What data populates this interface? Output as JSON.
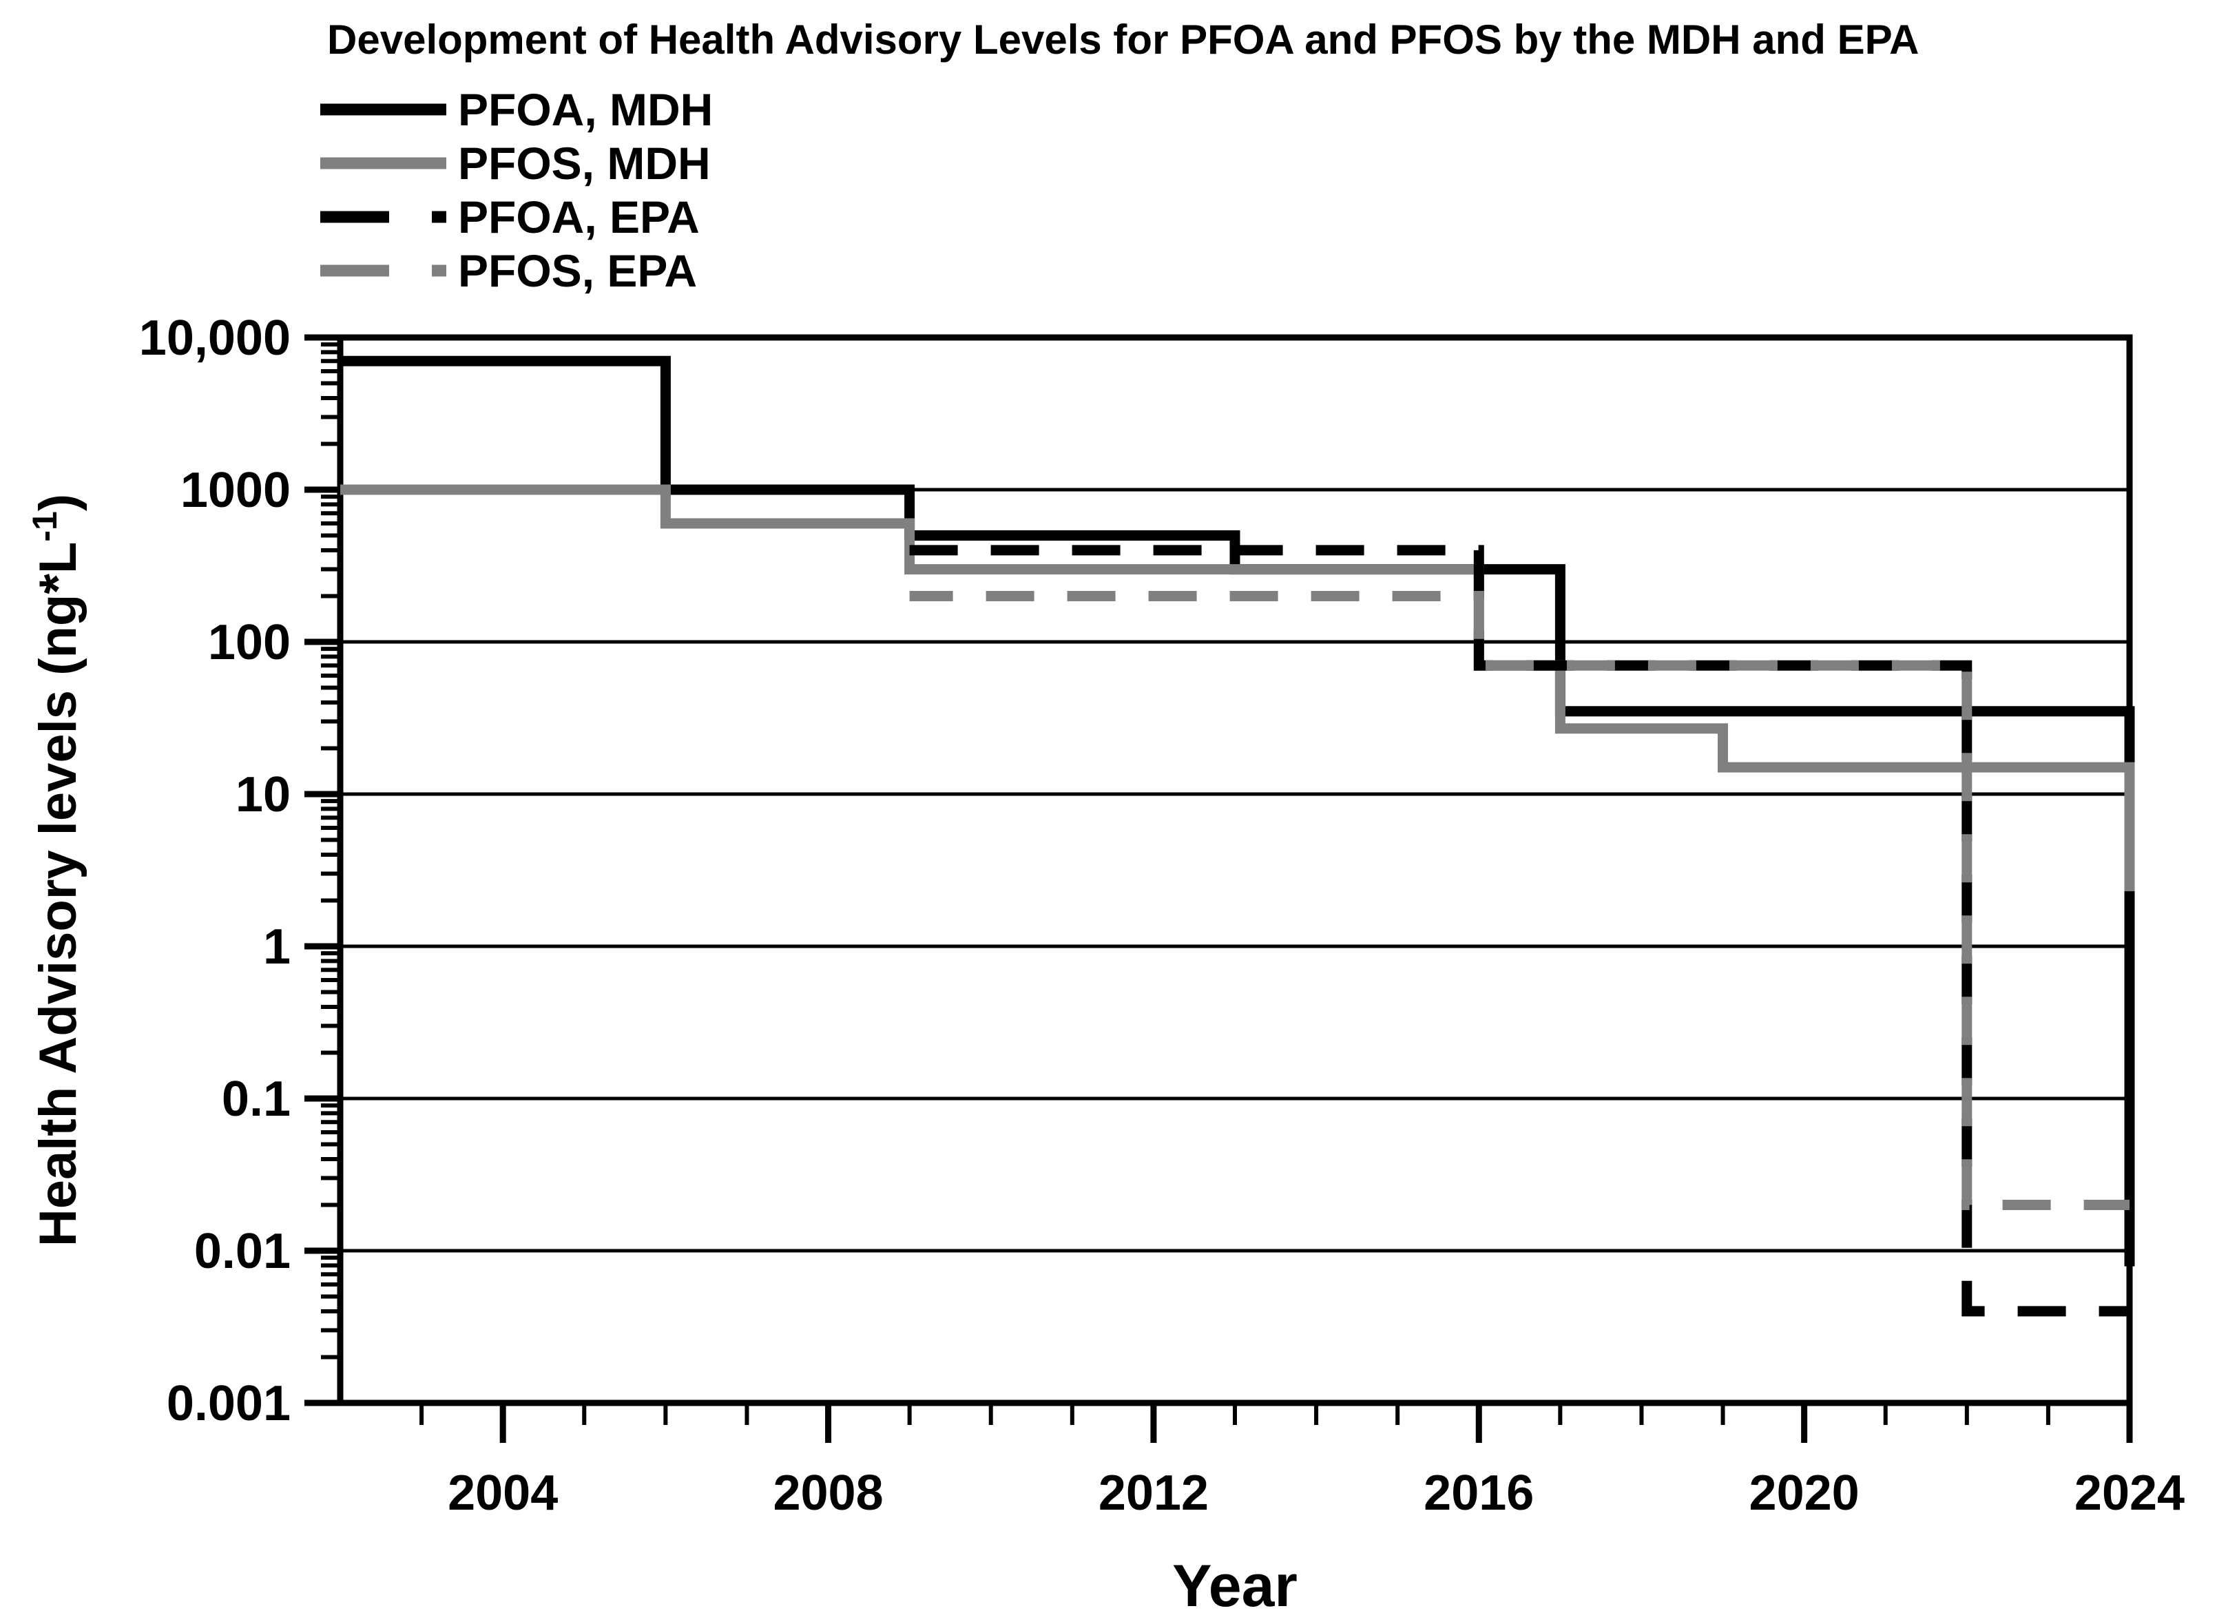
{
  "chart_data": {
    "type": "line",
    "subtype": "step",
    "title": "Development of Health Advisory Levels for PFOA and PFOS by the MDH and EPA",
    "xlabel": "Year",
    "ylabel": "Health Advisory levels (ng*L",
    "ylabel_superscript": "-1",
    "ylabel_suffix": ")",
    "x_range": [
      2002,
      2024
    ],
    "y_range_log": [
      0.001,
      10000
    ],
    "y_scale": "log",
    "grid": "horizontal-decades",
    "legend_position": "top-left",
    "x_major_ticks": [
      2004,
      2008,
      2012,
      2016,
      2020,
      2024
    ],
    "x_tick_labels": [
      "2004",
      "2008",
      "2012",
      "2016",
      "2020",
      "2024"
    ],
    "x_minor_tick_step_years": 1,
    "y_tick_values": [
      10000,
      1000,
      100,
      10,
      1,
      0.1,
      0.01,
      0.001
    ],
    "y_tick_labels": [
      "10,000",
      "1000",
      "100",
      "10",
      "1",
      "0.1",
      "0.01",
      "0.001"
    ],
    "colors": {
      "black": "#000000",
      "gray": "#808080",
      "background": "#ffffff"
    },
    "series": [
      {
        "name": "PFOA, MDH",
        "color": "#000000",
        "dashed": false,
        "points": [
          [
            2002,
            7000
          ],
          [
            2006,
            7000
          ],
          [
            2006,
            1000
          ],
          [
            2009,
            1000
          ],
          [
            2009,
            500
          ],
          [
            2013,
            500
          ],
          [
            2013,
            300
          ],
          [
            2017,
            300
          ],
          [
            2017,
            35
          ],
          [
            2024,
            35
          ],
          [
            2024,
            0.0079
          ]
        ]
      },
      {
        "name": "PFOS, MDH",
        "color": "#808080",
        "dashed": false,
        "points": [
          [
            2002,
            1000
          ],
          [
            2006,
            1000
          ],
          [
            2006,
            600
          ],
          [
            2009,
            600
          ],
          [
            2009,
            300
          ],
          [
            2016,
            300
          ],
          [
            2016,
            70
          ],
          [
            2017,
            70
          ],
          [
            2017,
            27
          ],
          [
            2019,
            27
          ],
          [
            2019,
            15
          ],
          [
            2024,
            15
          ],
          [
            2024,
            2.3
          ]
        ]
      },
      {
        "name": "PFOA, EPA",
        "color": "#000000",
        "dashed": true,
        "dash_offset": 0,
        "points": [
          [
            2009,
            400
          ],
          [
            2016,
            400
          ],
          [
            2016,
            70
          ],
          [
            2022,
            70
          ],
          [
            2022,
            0.004
          ],
          [
            2024,
            0.004
          ]
        ]
      },
      {
        "name": "PFOS, EPA",
        "color": "#808080",
        "dashed": true,
        "dash_offset": 7,
        "points": [
          [
            2009,
            200
          ],
          [
            2016,
            200
          ],
          [
            2016,
            70
          ],
          [
            2022,
            70
          ],
          [
            2022,
            0.02
          ],
          [
            2024,
            0.02
          ]
        ]
      }
    ]
  }
}
